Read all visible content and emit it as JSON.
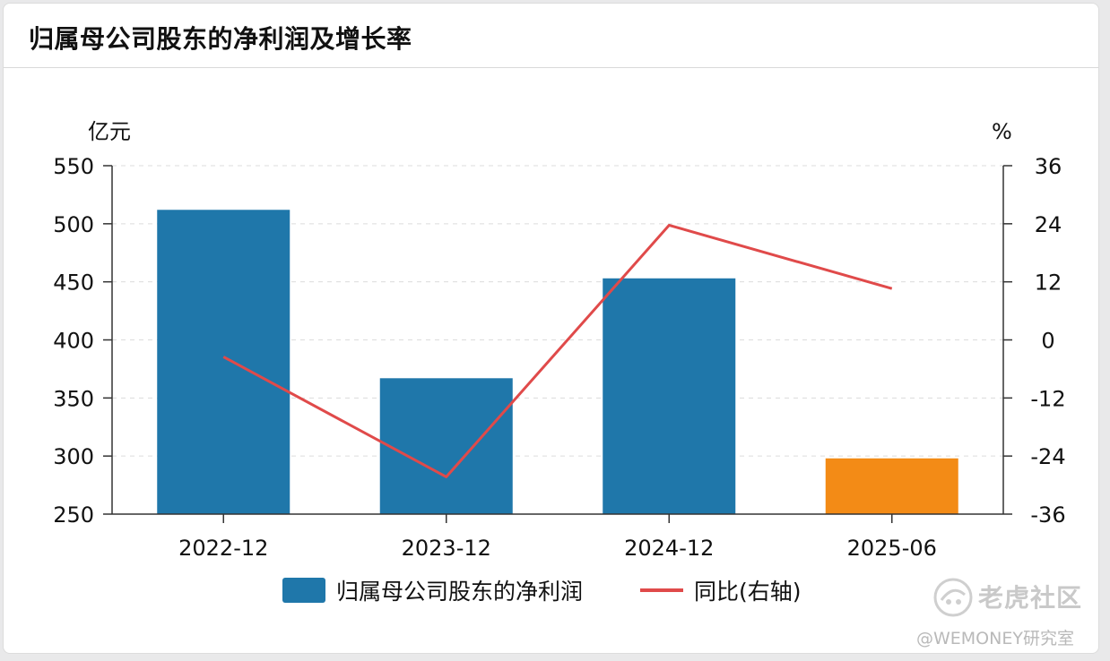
{
  "header": {
    "title": "归属母公司股东的净利润及增长率"
  },
  "chart_data": {
    "type": "bar",
    "categories": [
      "2022-12",
      "2023-12",
      "2024-12",
      "2025-06"
    ],
    "series": [
      {
        "name": "归属母公司股东的净利润",
        "type": "bar",
        "axis": "left",
        "values": [
          512,
          367,
          453,
          298
        ],
        "colors": [
          "#1f77aa",
          "#1f77aa",
          "#1f77aa",
          "#f38b16"
        ]
      },
      {
        "name": "同比(右轴)",
        "type": "line",
        "axis": "right",
        "values": [
          -3.5,
          -28.3,
          23.7,
          10.6
        ],
        "color": "#e04a4a"
      }
    ],
    "ylabel_left": "亿元",
    "ylabel_right": "%",
    "ylim_left": [
      250,
      550
    ],
    "yticks_left": [
      550,
      500,
      450,
      400,
      350,
      300,
      250
    ],
    "ylim_right": [
      -36,
      36
    ],
    "yticks_right": [
      "36",
      "24",
      "12",
      "0",
      "-12",
      "-24",
      "-36"
    ],
    "yticks_right_values": [
      36,
      24,
      12,
      0,
      -12,
      -24,
      -36
    ],
    "grid": "dashed-horizontal",
    "legend_position": "bottom-center"
  },
  "watermark": {
    "brand": "老虎社区",
    "sub": "@WEMONEY研究室"
  }
}
